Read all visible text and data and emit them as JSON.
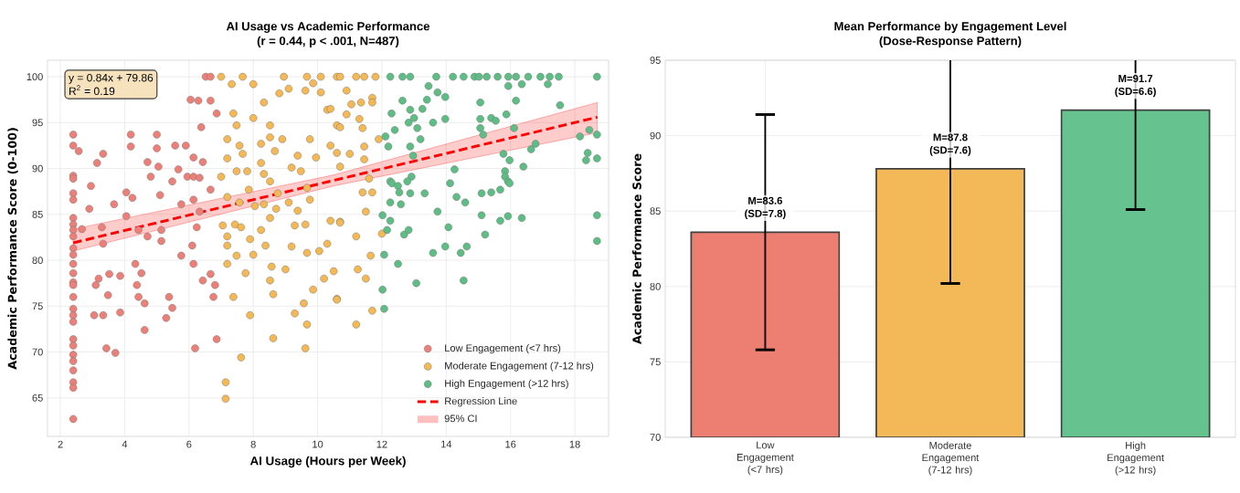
{
  "chart_data": [
    {
      "type": "scatter",
      "title": "AI Usage vs Academic Performance",
      "subtitle": "(r = 0.44, p < .001, N=487)",
      "xlabel": "AI Usage (Hours per Week)",
      "ylabel": "Academic Performance Score (0-100)",
      "annotations": [
        "y = 0.84x + 79.86",
        "R$^{2}$ = 0.19",
        "95% CI"
      ],
      "xlim": [
        1.6,
        19.05
      ],
      "ylim": [
        60.8,
        101.8
      ],
      "xticks": [
        2,
        4,
        6,
        8,
        10,
        12,
        14,
        16,
        18
      ],
      "yticks": [
        65,
        70,
        75,
        80,
        85,
        90,
        95,
        100
      ],
      "grid": true,
      "legend": "bottom right",
      "series": [
        {
          "name": "Low Engagement (<7 hrs)",
          "marker": "circle",
          "color": "#ec8078",
          "x": [
            2.4,
            2.4,
            2.4,
            2.4,
            2.4,
            2.4,
            2.4,
            2.4,
            2.4,
            2.4,
            2.4,
            2.4,
            2.4,
            2.4,
            2.4,
            2.4,
            2.4,
            2.4,
            2.4,
            2.4,
            2.4,
            2.4,
            2.4,
            2.4,
            2.4,
            2.4,
            2.4,
            2.4,
            2.57,
            2.67,
            3.14,
            3.33,
            2.95,
            2.9,
            3.1,
            3.19,
            3.52,
            3.86,
            3.48,
            3.05,
            3.33,
            3.86,
            3.43,
            3.71,
            3.29,
            3.33,
            3.67,
            4.05,
            4.19,
            4.19,
            4.05,
            4.24,
            4.43,
            4.33,
            4.52,
            4.38,
            4.43,
            4.62,
            4.62,
            4.71,
            5.0,
            5.0,
            5.05,
            4.81,
            4.71,
            5.1,
            5.14,
            5.14,
            5.38,
            5.48,
            5.29,
            5.48,
            5.67,
            5.57,
            5.9,
            5.76,
            5.76,
            5.95,
            6.14,
            6.14,
            6.33,
            6.43,
            6.1,
            6.14,
            6.19,
            6.14,
            6.33,
            6.24,
            6.43,
            6.67,
            6.81,
            6.76,
            6.86,
            6.67,
            6.05,
            6.29,
            6.38,
            6.67,
            6.52,
            6.67,
            6.86
          ],
          "values": [
            93.7,
            92.5,
            89.2,
            88.9,
            87.3,
            86.6,
            84.6,
            83.9,
            83.3,
            82.6,
            81.3,
            80.6,
            79.6,
            78.6,
            77.6,
            77.3,
            76.0,
            74.7,
            74.0,
            73.3,
            71.4,
            70.7,
            69.7,
            69.0,
            68.0,
            66.7,
            66.1,
            62.7,
            91.9,
            83.4,
            90.6,
            91.6,
            88.1,
            85.6,
            77.3,
            78.0,
            78.5,
            78.3,
            76.2,
            74.0,
            74.0,
            74.3,
            70.4,
            69.9,
            83.6,
            81.8,
            86.1,
            87.4,
            93.7,
            92.4,
            84.8,
            86.8,
            83.3,
            79.6,
            78.6,
            77.3,
            76.0,
            75.3,
            72.4,
            90.7,
            93.7,
            92.2,
            90.2,
            89.1,
            82.6,
            87.1,
            83.3,
            82.1,
            76.0,
            74.8,
            73.7,
            88.6,
            89.9,
            92.5,
            92.5,
            86.1,
            80.5,
            89.1,
            91.2,
            89.1,
            89.0,
            90.7,
            81.6,
            79.6,
            70.4,
            86.6,
            85.3,
            83.6,
            77.8,
            78.5,
            77.3,
            76.0,
            71.4,
            87.7,
            97.5,
            97.4,
            94.5,
            97.4,
            100,
            100,
            96.0
          ]
        },
        {
          "name": "Moderate Engagement (7-12 hrs)",
          "marker": "circle",
          "color": "#f4b854",
          "x": [
            7.0,
            7.33,
            7.67,
            8.0,
            8.95,
            9.1,
            8.81,
            9.67,
            9.62,
            10.1,
            10.6,
            9.86,
            10.1,
            8.33,
            8.0,
            7.38,
            7.48,
            8.52,
            10.3,
            10.4,
            10.6,
            7.19,
            7.57,
            7.19,
            7.67,
            8.24,
            8.52,
            8.9,
            8.67,
            9.38,
            9.76,
            9.95,
            10.4,
            10.6,
            7.0,
            7.48,
            7.81,
            8.24,
            8.33,
            8.52,
            9.19,
            9.48,
            9.67,
            7.19,
            7.57,
            7.86,
            8.05,
            8.33,
            8.76,
            9.1,
            9.38,
            9.76,
            7.05,
            7.19,
            7.43,
            7.62,
            7.9,
            8.24,
            8.52,
            8.71,
            9.29,
            9.62,
            10.4,
            10.7,
            7.19,
            7.48,
            8.0,
            8.38,
            9.19,
            9.67,
            10.05,
            10.3,
            7.19,
            7.76,
            8.57,
            9.0,
            8.52,
            10.2,
            10.5,
            7.38,
            8.62,
            9.57,
            9.86,
            10.6,
            9.29,
            7.9,
            9.67,
            8.62,
            9.62,
            7.62,
            7.14,
            7.14,
            10.7,
            11.2,
            11.45,
            11.8,
            10.9,
            11.05,
            11.35,
            11.7,
            11.7,
            10.9,
            11.3,
            10.7,
            11.4,
            11.9,
            11.45,
            11.0,
            10.7,
            11.45,
            11.6,
            11.4,
            11.7,
            11.5,
            10.7,
            11.2,
            12.0,
            11.65,
            11.25,
            11.5,
            11.7,
            11.2,
            10.6
          ],
          "values": [
            100,
            99.2,
            100,
            99.2,
            100,
            98.7,
            98.2,
            100,
            98.5,
            100,
            100,
            99.3,
            98.3,
            97.2,
            95.5,
            96.0,
            94.7,
            94.7,
            96.4,
            96.5,
            94.7,
            93.2,
            92.5,
            91.1,
            91.6,
            92.7,
            93.4,
            93.2,
            91.9,
            91.4,
            93.2,
            91.2,
            92.5,
            91.7,
            89.1,
            89.7,
            89.7,
            90.6,
            89.4,
            88.6,
            90.1,
            89.7,
            87.9,
            86.9,
            86.3,
            87.7,
            85.9,
            86.1,
            87.3,
            86.3,
            85.4,
            86.6,
            83.8,
            82.6,
            83.9,
            83.6,
            82.3,
            83.3,
            84.6,
            85.6,
            83.8,
            83.9,
            84.3,
            84.2,
            81.6,
            80.5,
            80.6,
            81.6,
            81.5,
            80.8,
            81.0,
            81.8,
            79.6,
            78.6,
            79.3,
            79.0,
            77.8,
            78.0,
            78.8,
            76.0,
            76.3,
            75.3,
            76.8,
            75.8,
            74.2,
            74.0,
            73.0,
            71.5,
            70.4,
            69.4,
            66.7,
            64.9,
            100,
            100,
            100,
            100,
            98.5,
            97.0,
            97.2,
            97.7,
            97.2,
            95.9,
            95.4,
            94.5,
            94.4,
            93.2,
            92.4,
            91.6,
            90.2,
            91.0,
            88.9,
            87.4,
            87.4,
            85.3,
            84.1,
            82.6,
            82.9,
            80.5,
            79.0,
            78.0,
            74.5,
            73.0,
            75.7
          ]
        },
        {
          "name": "High Engagement (>12 hrs)",
          "marker": "circle",
          "color": "#5dbd85",
          "x": [
            12.26,
            12.64,
            12.88,
            13.69,
            14.21,
            14.54,
            14.88,
            15.02,
            15.26,
            15.6,
            15.93,
            16.17,
            16.55,
            16.93,
            17.22,
            17.5,
            18.69,
            13.45,
            15.93,
            16.35,
            17.16,
            13.73,
            13.97,
            13.4,
            12.64,
            16.17,
            15.06,
            17.54,
            12.3,
            12.88,
            13.26,
            13.0,
            12.83,
            13.1,
            13.97,
            13.59,
            15.06,
            15.4,
            15.54,
            15.87,
            15.06,
            12.4,
            12.11,
            13.2,
            15.15,
            16.11,
            16.78,
            16.64,
            18.16,
            18.69,
            18.45,
            12.2,
            12.88,
            12.97,
            15.78,
            18.4,
            18.35,
            18.69,
            15.97,
            14.26,
            16.4,
            15.83,
            15.83,
            15.92,
            12.92,
            12.26,
            12.31,
            12.5,
            12.79,
            14.12,
            15.68,
            15.97,
            12.54,
            12.88,
            13.33,
            14.32,
            15.1,
            15.4,
            14.59,
            12.26,
            12.59,
            12.02,
            12.26,
            13.73,
            15.1,
            15.68,
            15.92,
            16.35,
            18.69,
            12.16,
            12.69,
            12.83,
            14.07,
            15.21,
            18.69,
            12.07,
            13.59,
            13.97,
            14.45,
            14.64,
            12.5,
            13.07,
            14.54,
            12.02,
            12.07
          ],
          "values": [
            100,
            100,
            100,
            100,
            100,
            100,
            100,
            100,
            100,
            100,
            100,
            100,
            100,
            100,
            100,
            100,
            100,
            99.0,
            99.0,
            99.2,
            99.2,
            98.3,
            97.8,
            97.5,
            97.4,
            97.4,
            97.2,
            96.9,
            96.0,
            96.4,
            96.5,
            95.5,
            95.0,
            94.4,
            95.4,
            95.0,
            95.4,
            95.5,
            95.2,
            95.9,
            94.4,
            94.2,
            93.5,
            93.2,
            93.7,
            94.4,
            92.7,
            92.1,
            93.5,
            93.7,
            94.2,
            92.4,
            92.4,
            91.4,
            91.6,
            91.7,
            90.9,
            91.1,
            90.9,
            89.9,
            90.2,
            89.7,
            89.1,
            88.6,
            89.1,
            88.6,
            88.4,
            88.1,
            88.6,
            88.4,
            87.7,
            88.4,
            87.4,
            87.3,
            87.3,
            86.9,
            87.3,
            87.4,
            86.3,
            86.3,
            86.1,
            84.9,
            84.3,
            85.3,
            84.9,
            84.3,
            84.8,
            84.6,
            84.9,
            83.3,
            82.8,
            83.3,
            83.6,
            82.8,
            82.1,
            80.6,
            80.8,
            81.5,
            80.8,
            81.5,
            79.6,
            77.5,
            77.8,
            76.8,
            74.7
          ]
        },
        {
          "name": "Regression Line",
          "type": "line",
          "line_style": "dashed",
          "marker": "none",
          "color": "#ff0000",
          "x": [
            2.4,
            10.5,
            18.7
          ],
          "values": [
            81.9,
            88.7,
            95.6
          ],
          "lower": [
            81.0,
            88.1,
            93.9
          ],
          "upper": [
            83.4,
            89.3,
            97.2
          ]
        }
      ]
    },
    {
      "type": "bar",
      "title": "Mean Performance by Engagement Level",
      "subtitle": "(Dose-Response Pattern)",
      "ylabel": "Academic Performance Score",
      "categories": [
        "Low Engagement (<7 hrs)",
        "Moderate Engagement (7-12 hrs)",
        "High Engagement (>12 hrs)"
      ],
      "values": [
        83.6,
        87.8,
        91.7
      ],
      "errors": [
        7.8,
        7.6,
        6.6
      ],
      "colors": [
        "#ec7f72",
        "#f3b857",
        "#66c28f"
      ],
      "value_labels": [
        "M=83.6 (SD=7.8)",
        "M=87.8 (SD=7.6)",
        "M=91.7 (SD=6.6)"
      ],
      "ylim": [
        70,
        95
      ],
      "yticks": [
        70,
        75,
        80,
        85,
        90,
        95
      ],
      "grid": true
    }
  ]
}
